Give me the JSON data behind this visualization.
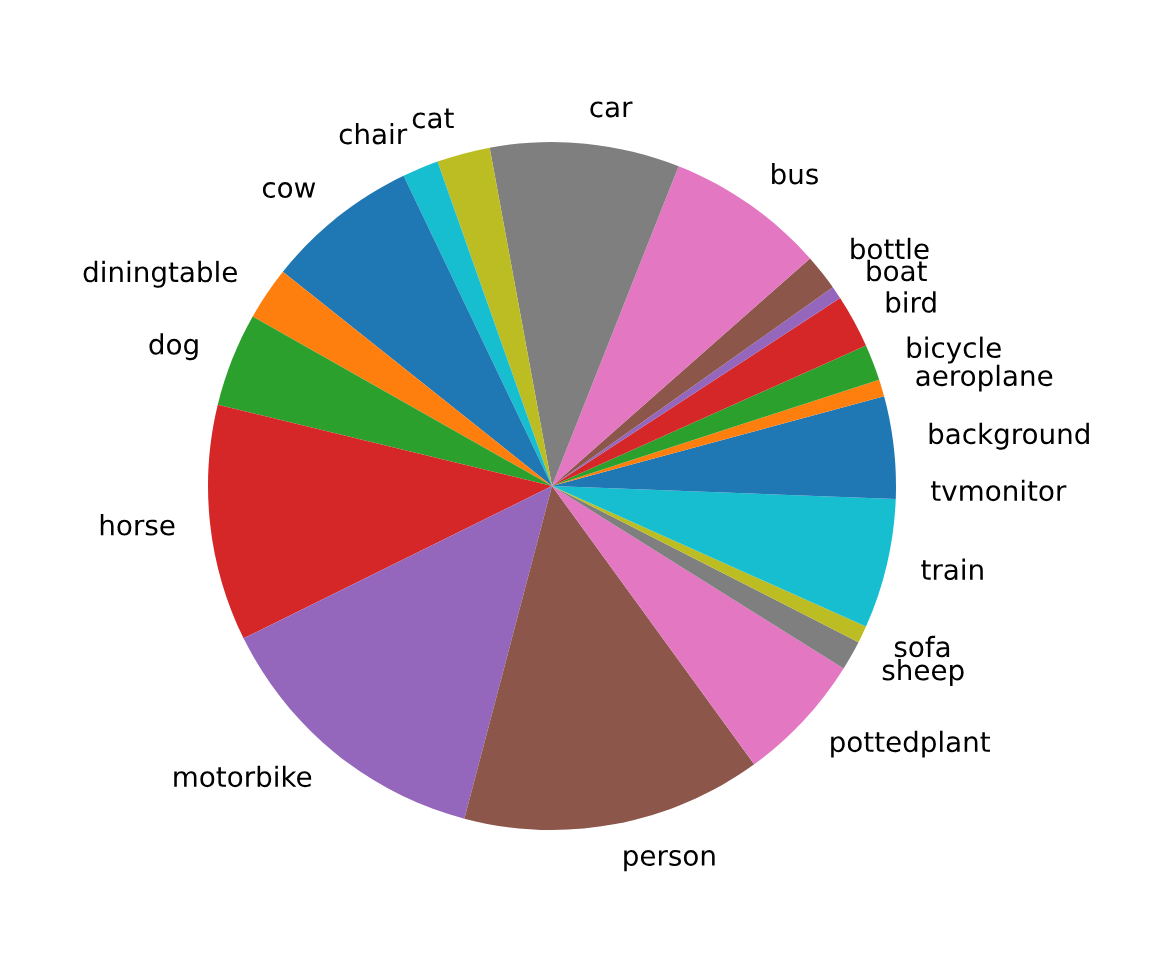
{
  "chart_data": {
    "type": "pie",
    "categories": [
      "background",
      "aeroplane",
      "bicycle",
      "bird",
      "boat",
      "bottle",
      "bus",
      "car",
      "cat",
      "chair",
      "cow",
      "diningtable",
      "dog",
      "horse",
      "motorbike",
      "person",
      "pottedplant",
      "sheep",
      "sofa",
      "train",
      "tvmonitor"
    ],
    "values": [
      4.2,
      0.8,
      1.7,
      2.5,
      0.6,
      1.7,
      7.5,
      8.9,
      2.5,
      1.7,
      7.2,
      2.5,
      4.4,
      11.1,
      13.6,
      14.1,
      6.1,
      1.4,
      0.8,
      6.1,
      0.6
    ],
    "colors": [
      "#1f77b4",
      "#ff7f0e",
      "#2ca02c",
      "#d62728",
      "#9467bd",
      "#8c564b",
      "#e377c2",
      "#7f7f7f",
      "#bcbd22",
      "#17becf",
      "#1f77b4",
      "#ff7f0e",
      "#2ca02c",
      "#d62728",
      "#9467bd",
      "#8c564b",
      "#e377c2",
      "#7f7f7f",
      "#bcbd22",
      "#17becf",
      "#1f77b4"
    ]
  }
}
